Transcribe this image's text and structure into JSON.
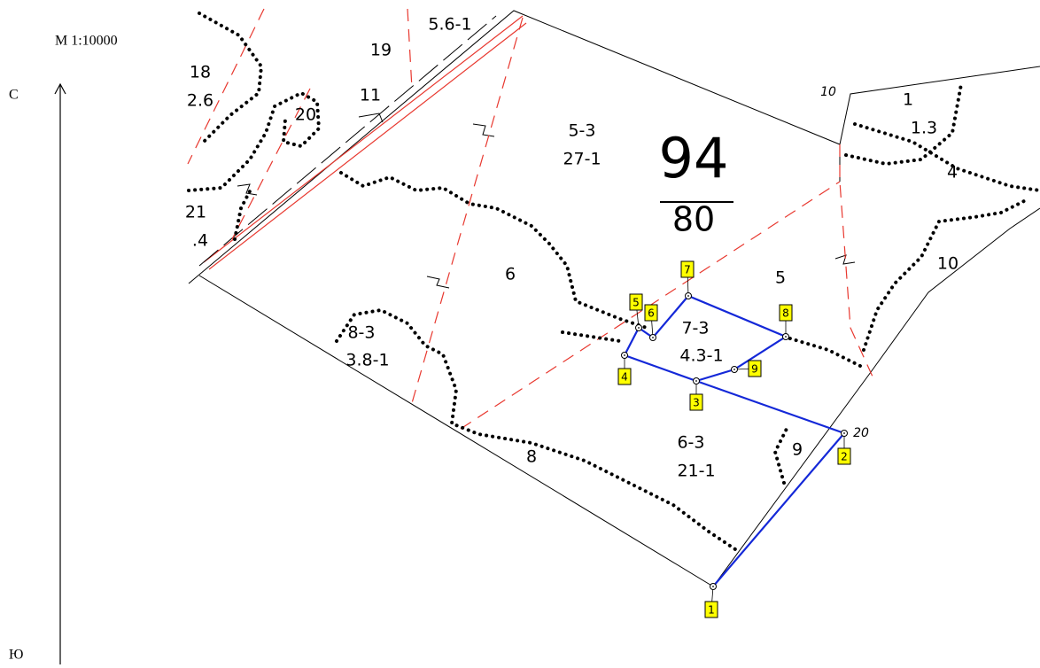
{
  "scale": "М 1:10000",
  "north": "С",
  "south": "Ю",
  "labels": [
    "5.6-1",
    "19",
    "18",
    "2.6",
    "11",
    "20",
    "21",
    ".4",
    "5-3",
    "27-1",
    "94",
    "80",
    "10",
    "1",
    "1.3",
    "4",
    "10",
    "5",
    "6",
    "8-3",
    "3.8-1",
    "7-3",
    "4.3-1",
    "6-3",
    "21-1",
    "9",
    "8",
    "20"
  ],
  "points": [
    "1",
    "2",
    "3",
    "4",
    "5",
    "6",
    "7",
    "8",
    "9"
  ]
}
